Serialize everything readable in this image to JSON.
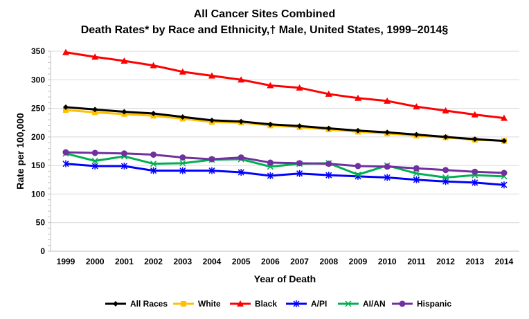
{
  "chart_data": {
    "type": "line",
    "title": "All Cancer Sites Combined",
    "subtitle": "Death Rates* by Race and Ethnicity,† Male, United States, 1999–2014§",
    "xlabel": "Year of Death",
    "ylabel": "Rate per 100,000",
    "ylim": [
      0,
      350
    ],
    "yticks": [
      0,
      50,
      100,
      150,
      200,
      250,
      300,
      350
    ],
    "grid": true,
    "legend_position": "bottom",
    "x": [
      "1999",
      "2000",
      "2001",
      "2002",
      "2003",
      "2004",
      "2005",
      "2006",
      "2007",
      "2008",
      "2009",
      "2010",
      "2011",
      "2012",
      "2013",
      "2014"
    ],
    "series": [
      {
        "name": "All Races",
        "color": "#000000",
        "marker": "diamond",
        "values": [
          252,
          248,
          244,
          241,
          235,
          229,
          227,
          222,
          219,
          215,
          211,
          208,
          204,
          200,
          196,
          193
        ]
      },
      {
        "name": "White",
        "color": "#FFC000",
        "marker": "square",
        "values": [
          247,
          243,
          240,
          237,
          232,
          226,
          225,
          220,
          217,
          213,
          209,
          206,
          202,
          199,
          195,
          193
        ]
      },
      {
        "name": "Black",
        "color": "#FF0000",
        "marker": "triangle",
        "values": [
          348,
          340,
          333,
          325,
          314,
          307,
          300,
          290,
          286,
          275,
          268,
          263,
          253,
          246,
          239,
          233
        ]
      },
      {
        "name": "A/PI",
        "color": "#0000FF",
        "marker": "asterisk",
        "values": [
          153,
          149,
          149,
          141,
          141,
          141,
          138,
          132,
          136,
          133,
          131,
          129,
          125,
          122,
          120,
          116
        ]
      },
      {
        "name": "AI/AN",
        "color": "#00B050",
        "marker": "x",
        "values": [
          171,
          158,
          166,
          153,
          154,
          160,
          161,
          148,
          153,
          154,
          134,
          150,
          136,
          129,
          133,
          131
        ]
      },
      {
        "name": "Hispanic",
        "color": "#7030A0",
        "marker": "circle",
        "values": [
          173,
          172,
          171,
          169,
          164,
          161,
          164,
          155,
          154,
          153,
          149,
          148,
          145,
          142,
          139,
          137
        ]
      }
    ]
  }
}
